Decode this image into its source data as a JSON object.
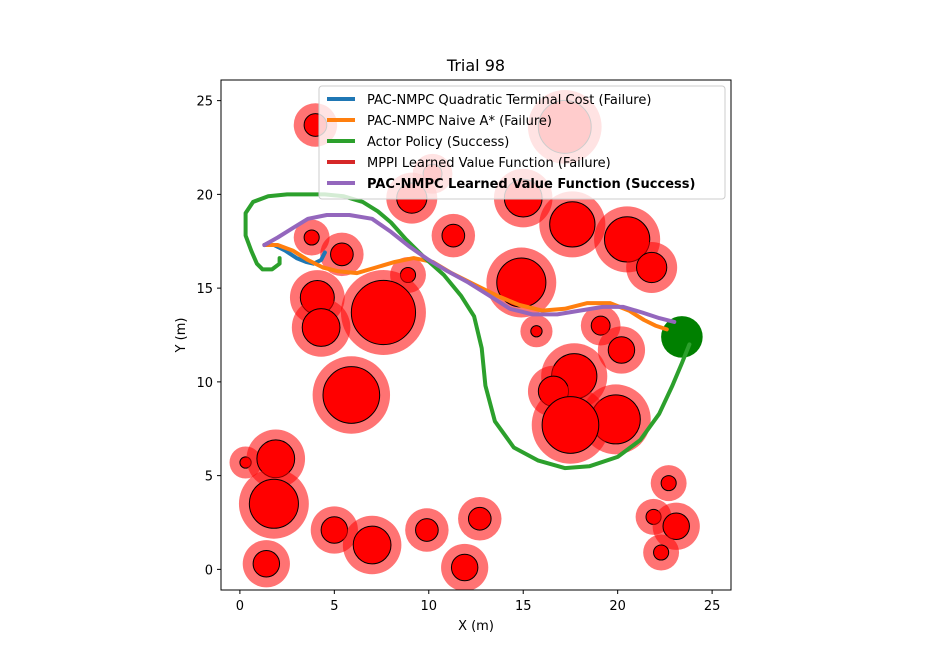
{
  "chart_data": {
    "type": "line",
    "title": "Trial 98",
    "xlabel": "X (m)",
    "ylabel": "Y (m)",
    "xlim": [
      -1,
      26
    ],
    "ylim": [
      -1.1,
      26.1
    ],
    "xticks": [
      "0",
      "5",
      "10",
      "15",
      "20",
      "25"
    ],
    "xtick_values": [
      0,
      5,
      10,
      15,
      20,
      25
    ],
    "yticks": [
      "0",
      "5",
      "10",
      "15",
      "20",
      "25"
    ],
    "ytick_values": [
      0,
      5,
      10,
      15,
      20,
      25
    ],
    "grid": false,
    "legend_position": "top-right",
    "colors": {
      "obstacle_fill": "#ff0000",
      "obstacle_halo": "#ff0000",
      "goal": "#008000"
    },
    "goal": {
      "x": 23.4,
      "y": 12.4,
      "r": 1.1
    },
    "obstacles": [
      {
        "x": 4.0,
        "y": 23.7,
        "r": 0.6
      },
      {
        "x": 17.2,
        "y": 23.6,
        "r": 1.4
      },
      {
        "x": 10.2,
        "y": 21.1,
        "r": 0.5
      },
      {
        "x": 9.1,
        "y": 19.8,
        "r": 0.8
      },
      {
        "x": 15.0,
        "y": 19.8,
        "r": 1.0
      },
      {
        "x": 17.6,
        "y": 18.4,
        "r": 1.2
      },
      {
        "x": 20.5,
        "y": 17.6,
        "r": 1.2
      },
      {
        "x": 11.3,
        "y": 17.8,
        "r": 0.6
      },
      {
        "x": 3.8,
        "y": 17.7,
        "r": 0.4
      },
      {
        "x": 5.4,
        "y": 16.8,
        "r": 0.6
      },
      {
        "x": 8.9,
        "y": 15.7,
        "r": 0.4
      },
      {
        "x": 21.8,
        "y": 16.1,
        "r": 0.8
      },
      {
        "x": 14.9,
        "y": 15.3,
        "r": 1.3
      },
      {
        "x": 4.1,
        "y": 14.5,
        "r": 0.9
      },
      {
        "x": 7.6,
        "y": 13.7,
        "r": 1.7
      },
      {
        "x": 4.3,
        "y": 12.9,
        "r": 1.0
      },
      {
        "x": 15.7,
        "y": 12.7,
        "r": 0.3
      },
      {
        "x": 19.1,
        "y": 13.0,
        "r": 0.5
      },
      {
        "x": 20.2,
        "y": 11.7,
        "r": 0.7
      },
      {
        "x": 17.7,
        "y": 10.3,
        "r": 1.2
      },
      {
        "x": 16.6,
        "y": 9.5,
        "r": 0.8
      },
      {
        "x": 5.9,
        "y": 9.3,
        "r": 1.5
      },
      {
        "x": 19.9,
        "y": 8.0,
        "r": 1.3
      },
      {
        "x": 17.5,
        "y": 7.7,
        "r": 1.5
      },
      {
        "x": 0.3,
        "y": 5.7,
        "r": 0.3
      },
      {
        "x": 1.9,
        "y": 5.9,
        "r": 1.0
      },
      {
        "x": 22.7,
        "y": 4.6,
        "r": 0.4
      },
      {
        "x": 1.8,
        "y": 3.5,
        "r": 1.3
      },
      {
        "x": 12.7,
        "y": 2.7,
        "r": 0.6
      },
      {
        "x": 5.0,
        "y": 2.1,
        "r": 0.7
      },
      {
        "x": 9.9,
        "y": 2.1,
        "r": 0.6
      },
      {
        "x": 21.9,
        "y": 2.8,
        "r": 0.4
      },
      {
        "x": 23.1,
        "y": 2.3,
        "r": 0.7
      },
      {
        "x": 7.0,
        "y": 1.3,
        "r": 1.0
      },
      {
        "x": 1.4,
        "y": 0.3,
        "r": 0.7
      },
      {
        "x": 11.9,
        "y": 0.1,
        "r": 0.7
      },
      {
        "x": 22.3,
        "y": 0.9,
        "r": 0.4
      }
    ],
    "series": [
      {
        "name": "PAC-NMPC Quadratic Terminal Cost (Failure)",
        "color": "#1f77b4",
        "bold": false,
        "x": [
          1.3,
          1.8,
          2.4,
          3.0,
          3.5,
          3.9,
          4.3,
          4.5
        ],
        "y": [
          17.3,
          17.3,
          17.0,
          16.6,
          16.4,
          16.3,
          16.5,
          16.9
        ]
      },
      {
        "name": "PAC-NMPC Naive A* (Failure)",
        "color": "#ff7f0e",
        "bold": false,
        "x": [
          1.4,
          2.0,
          2.8,
          3.6,
          4.4,
          5.2,
          6.2,
          7.2,
          8.2,
          9.2,
          10.2,
          11.2,
          12.4,
          13.6,
          14.8,
          16.0,
          17.2,
          18.4,
          19.6,
          20.6,
          21.4,
          22.0,
          22.6
        ],
        "y": [
          17.3,
          17.3,
          17.0,
          16.5,
          16.1,
          15.9,
          15.8,
          16.1,
          16.4,
          16.6,
          16.4,
          15.8,
          15.2,
          14.6,
          14.1,
          13.8,
          13.9,
          14.2,
          14.2,
          13.8,
          13.3,
          13.0,
          12.8
        ]
      },
      {
        "name": "Actor Policy (Success)",
        "color": "#2ca02c",
        "bold": false,
        "x": [
          2.1,
          2.1,
          1.7,
          1.2,
          0.9,
          0.6,
          0.3,
          0.3,
          0.7,
          1.5,
          2.5,
          3.5,
          4.5,
          5.5,
          6.5,
          7.3,
          8.0,
          8.8,
          9.8,
          10.8,
          11.7,
          12.4,
          12.8,
          13.0,
          13.5,
          14.5,
          15.8,
          17.2,
          18.5,
          20.0,
          21.2,
          22.2,
          22.9,
          23.4,
          23.8
        ],
        "y": [
          16.6,
          16.3,
          16.0,
          16.0,
          16.3,
          17.0,
          17.8,
          19.0,
          19.6,
          19.9,
          20.0,
          20.0,
          20.0,
          19.9,
          19.6,
          19.1,
          18.5,
          17.6,
          16.6,
          15.7,
          14.6,
          13.5,
          11.8,
          9.8,
          7.9,
          6.5,
          5.8,
          5.4,
          5.5,
          6.0,
          6.9,
          8.3,
          9.8,
          11.0,
          12.0
        ]
      },
      {
        "name": "MPPI Learned Value Function (Failure)",
        "color": "#d62728",
        "bold": false,
        "x": [
          1.3,
          1.5
        ],
        "y": [
          17.3,
          17.4
        ]
      },
      {
        "name": "PAC-NMPC Learned Value Function (Success)",
        "color": "#9467bd",
        "bold": true,
        "x": [
          1.3,
          2.0,
          2.8,
          3.6,
          4.6,
          5.8,
          7.0,
          8.0,
          9.0,
          10.0,
          11.0,
          12.1,
          13.2,
          14.3,
          15.5,
          16.8,
          18.0,
          19.2,
          20.3,
          21.3,
          22.2,
          23.0
        ],
        "y": [
          17.3,
          17.7,
          18.2,
          18.7,
          18.9,
          18.9,
          18.7,
          18.0,
          17.2,
          16.5,
          15.9,
          15.3,
          14.6,
          13.9,
          13.6,
          13.6,
          13.8,
          14.0,
          14.0,
          13.7,
          13.4,
          13.2
        ]
      }
    ]
  }
}
